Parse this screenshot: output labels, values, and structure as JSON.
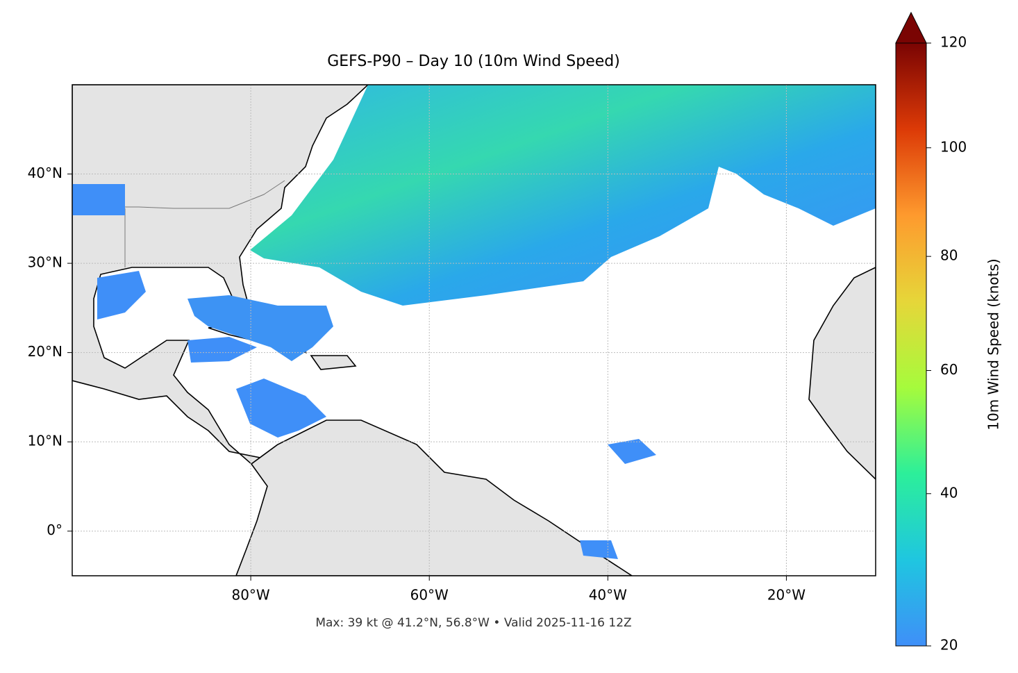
{
  "chart_data": {
    "type": "map",
    "title": "GEFS-P90 – Day 10 (10m Wind Speed)",
    "xlim": [
      -100,
      -10
    ],
    "ylim": [
      -5,
      50
    ],
    "xticks": [
      {
        "value": -80,
        "label": "80°W"
      },
      {
        "value": -60,
        "label": "60°W"
      },
      {
        "value": -40,
        "label": "40°W"
      },
      {
        "value": -20,
        "label": "20°W"
      }
    ],
    "yticks": [
      {
        "value": 0,
        "label": "0°"
      },
      {
        "value": 10,
        "label": "10°N"
      },
      {
        "value": 20,
        "label": "20°N"
      },
      {
        "value": 30,
        "label": "30°N"
      },
      {
        "value": 40,
        "label": "40°N"
      }
    ],
    "grid": true,
    "footer": "Max: 39 kt @ 41.2°N, 56.8°W • Valid 2025-11-16 12Z",
    "colorbar": {
      "label": "10m Wind Speed (knots)",
      "lim": [
        20,
        120
      ],
      "ticks": [
        20,
        40,
        60,
        80,
        100,
        120
      ],
      "colormap": [
        "#3f8ff8",
        "#1fc6e0",
        "#2cef9a",
        "#a6fb3c",
        "#e6d639",
        "#fe9a2e",
        "#dc3a07",
        "#7a0403"
      ],
      "norm": {
        "type": "power",
        "gamma": 0.855
      },
      "extend": "max"
    }
  }
}
